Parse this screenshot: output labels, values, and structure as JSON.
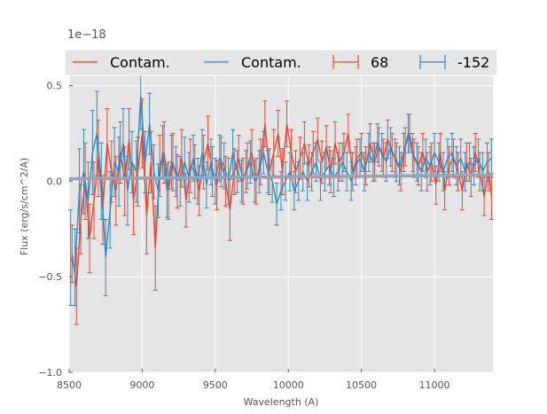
{
  "chart_data": {
    "type": "line",
    "xlabel": "Wavelength (A)",
    "ylabel": "Flux (erg/s/cm^2/A)",
    "y_offset_label": "1e−18",
    "xlim": [
      8500,
      11400
    ],
    "ylim": [
      -1.0,
      0.6
    ],
    "x_ticks": [
      8500,
      9000,
      9500,
      10000,
      10500,
      11000
    ],
    "x_tick_labels": [
      "8500",
      "9000",
      "9500",
      "10000",
      "10500",
      "11000"
    ],
    "y_ticks": [
      -1.0,
      -0.5,
      0.0,
      0.5
    ],
    "y_tick_labels": [
      "−1.0",
      "−0.5",
      "0.0",
      "0.5"
    ],
    "grid": true,
    "legend_position": "top",
    "colors": {
      "red": "#E24A33",
      "blue": "#348ABD",
      "contam_red": "#E8806F",
      "contam_blue": "#7AAFD1",
      "background": "#E5E5E5",
      "grid": "#ffffff"
    },
    "legend": [
      {
        "label": "Contam.",
        "style": "line",
        "color": "#E8806F"
      },
      {
        "label": "Contam.",
        "style": "line",
        "color": "#7AAFD1"
      },
      {
        "label": "68",
        "style": "errorbar",
        "color": "#E24A33"
      },
      {
        "label": "-152",
        "style": "errorbar",
        "color": "#348ABD"
      }
    ],
    "contamination": {
      "x": [
        8500,
        11400
      ],
      "red_y": [
        0.01,
        0.03
      ],
      "blue_y": [
        0.015,
        0.035
      ]
    },
    "series": [
      {
        "name": "68",
        "color": "#E24A33",
        "x": [
          8520,
          8550,
          8580,
          8610,
          8640,
          8670,
          8700,
          8730,
          8760,
          8790,
          8820,
          8850,
          8880,
          8910,
          8940,
          8970,
          9000,
          9030,
          9060,
          9090,
          9120,
          9150,
          9180,
          9210,
          9240,
          9270,
          9300,
          9330,
          9360,
          9390,
          9420,
          9450,
          9480,
          9510,
          9540,
          9570,
          9600,
          9630,
          9660,
          9690,
          9720,
          9750,
          9780,
          9810,
          9840,
          9870,
          9900,
          9930,
          9960,
          9990,
          10020,
          10050,
          10080,
          10110,
          10140,
          10170,
          10200,
          10230,
          10260,
          10290,
          10320,
          10350,
          10380,
          10410,
          10440,
          10470,
          10500,
          10530,
          10560,
          10590,
          10620,
          10650,
          10680,
          10710,
          10740,
          10770,
          10800,
          10830,
          10860,
          10890,
          10920,
          10950,
          10980,
          11010,
          11040,
          11070,
          11100,
          11130,
          11160,
          11190,
          11220,
          11250,
          11280,
          11310,
          11340,
          11370,
          11390
        ],
        "y": [
          -0.38,
          -0.55,
          -0.2,
          0.0,
          -0.3,
          -0.1,
          0.12,
          -0.15,
          0.2,
          0.05,
          -0.05,
          0.15,
          0.0,
          0.22,
          -0.1,
          0.05,
          0.25,
          -0.18,
          0.1,
          -0.35,
          0.08,
          0.15,
          -0.05,
          0.1,
          0.0,
          0.12,
          -0.1,
          0.08,
          0.05,
          -0.05,
          0.1,
          0.2,
          0.05,
          -0.02,
          0.1,
          0.0,
          -0.15,
          0.05,
          0.12,
          0.0,
          0.08,
          0.15,
          0.0,
          0.1,
          0.3,
          0.05,
          0.15,
          0.25,
          0.05,
          0.3,
          0.15,
          0.05,
          0.12,
          0.2,
          0.08,
          0.15,
          0.22,
          0.1,
          0.18,
          0.05,
          0.2,
          0.1,
          0.15,
          0.25,
          0.05,
          0.12,
          0.15,
          0.08,
          0.2,
          0.1,
          0.18,
          0.12,
          0.22,
          0.15,
          0.1,
          0.05,
          0.18,
          0.25,
          0.12,
          0.08,
          0.15,
          0.05,
          0.1,
          -0.02,
          0.15,
          -0.05,
          0.08,
          0.12,
          0.05,
          -0.05,
          0.1,
          0.02,
          0.15,
          0.05,
          -0.08,
          0.05,
          -0.08
        ],
        "yerr": [
          0.15,
          0.2,
          0.18,
          0.2,
          0.18,
          0.2,
          0.2,
          0.18,
          0.18,
          0.16,
          0.18,
          0.16,
          0.18,
          0.16,
          0.18,
          0.18,
          0.18,
          0.2,
          0.16,
          0.22,
          0.16,
          0.16,
          0.15,
          0.15,
          0.14,
          0.15,
          0.14,
          0.14,
          0.14,
          0.13,
          0.14,
          0.14,
          0.13,
          0.13,
          0.13,
          0.13,
          0.16,
          0.12,
          0.12,
          0.12,
          0.12,
          0.12,
          0.12,
          0.12,
          0.12,
          0.12,
          0.12,
          0.12,
          0.12,
          0.12,
          0.12,
          0.11,
          0.11,
          0.11,
          0.11,
          0.11,
          0.11,
          0.11,
          0.11,
          0.11,
          0.11,
          0.1,
          0.1,
          0.1,
          0.1,
          0.1,
          0.1,
          0.1,
          0.1,
          0.1,
          0.1,
          0.1,
          0.1,
          0.1,
          0.1,
          0.1,
          0.1,
          0.1,
          0.1,
          0.1,
          0.1,
          0.1,
          0.1,
          0.1,
          0.1,
          0.1,
          0.1,
          0.1,
          0.1,
          0.1,
          0.1,
          0.1,
          0.1,
          0.1,
          0.1,
          0.1,
          0.12
        ]
      },
      {
        "name": "-152",
        "color": "#348ABD",
        "x": [
          8510,
          8540,
          8570,
          8600,
          8630,
          8660,
          8690,
          8720,
          8750,
          8780,
          8810,
          8840,
          8870,
          8900,
          8930,
          8960,
          8990,
          9020,
          9050,
          9080,
          9110,
          9140,
          9170,
          9200,
          9230,
          9260,
          9290,
          9320,
          9350,
          9380,
          9410,
          9440,
          9470,
          9500,
          9530,
          9560,
          9590,
          9620,
          9650,
          9680,
          9710,
          9740,
          9770,
          9800,
          9830,
          9860,
          9890,
          9920,
          9950,
          9980,
          10010,
          10040,
          10070,
          10100,
          10130,
          10160,
          10190,
          10220,
          10250,
          10280,
          10310,
          10340,
          10370,
          10400,
          10430,
          10460,
          10490,
          10520,
          10550,
          10580,
          10610,
          10640,
          10670,
          10700,
          10730,
          10760,
          10790,
          10820,
          10850,
          10880,
          10910,
          10940,
          10970,
          11000,
          11030,
          11060,
          11090,
          11120,
          11150,
          11180,
          11210,
          11240,
          11270,
          11300,
          11330,
          11360,
          11390
        ],
        "y": [
          -0.4,
          -0.45,
          -0.05,
          0.05,
          -0.1,
          0.15,
          0.25,
          0.0,
          -0.4,
          -0.15,
          0.1,
          0.05,
          0.2,
          -0.05,
          0.1,
          0.05,
          0.45,
          0.1,
          0.3,
          0.05,
          -0.05,
          0.15,
          -0.05,
          0.1,
          0.05,
          0.0,
          0.1,
          0.02,
          0.12,
          0.0,
          0.15,
          -0.02,
          0.1,
          0.0,
          0.12,
          0.08,
          0.0,
          0.15,
          0.05,
          0.0,
          0.05,
          0.1,
          0.0,
          0.05,
          0.15,
          0.05,
          0.0,
          -0.12,
          -0.05,
          0.0,
          0.05,
          -0.05,
          0.0,
          0.05,
          0.0,
          0.05,
          0.1,
          0.0,
          0.05,
          0.08,
          0.02,
          0.05,
          0.1,
          0.05,
          0.0,
          0.08,
          0.12,
          0.05,
          0.15,
          0.1,
          0.2,
          0.15,
          0.1,
          0.18,
          0.12,
          0.08,
          0.15,
          0.25,
          0.15,
          0.1,
          0.05,
          0.12,
          0.08,
          0.15,
          0.1,
          0.05,
          0.12,
          0.15,
          0.08,
          0.12,
          0.05,
          0.1,
          0.08,
          0.12,
          0.05,
          0.1,
          0.12
        ],
        "yerr": [
          0.25,
          0.2,
          0.22,
          0.22,
          0.2,
          0.22,
          0.22,
          0.2,
          0.2,
          0.2,
          0.18,
          0.18,
          0.18,
          0.18,
          0.16,
          0.16,
          0.18,
          0.16,
          0.16,
          0.14,
          0.14,
          0.14,
          0.14,
          0.14,
          0.13,
          0.13,
          0.13,
          0.13,
          0.12,
          0.12,
          0.12,
          0.12,
          0.12,
          0.12,
          0.12,
          0.12,
          0.12,
          0.12,
          0.11,
          0.11,
          0.11,
          0.11,
          0.11,
          0.11,
          0.11,
          0.11,
          0.11,
          0.11,
          0.1,
          0.1,
          0.1,
          0.1,
          0.1,
          0.1,
          0.1,
          0.1,
          0.1,
          0.1,
          0.1,
          0.1,
          0.1,
          0.1,
          0.1,
          0.1,
          0.1,
          0.1,
          0.1,
          0.1,
          0.1,
          0.1,
          0.1,
          0.1,
          0.1,
          0.1,
          0.1,
          0.1,
          0.1,
          0.1,
          0.1,
          0.1,
          0.1,
          0.1,
          0.1,
          0.1,
          0.1,
          0.1,
          0.1,
          0.1,
          0.1,
          0.1,
          0.1,
          0.1,
          0.1,
          0.1,
          0.1,
          0.1,
          0.1
        ]
      }
    ]
  }
}
